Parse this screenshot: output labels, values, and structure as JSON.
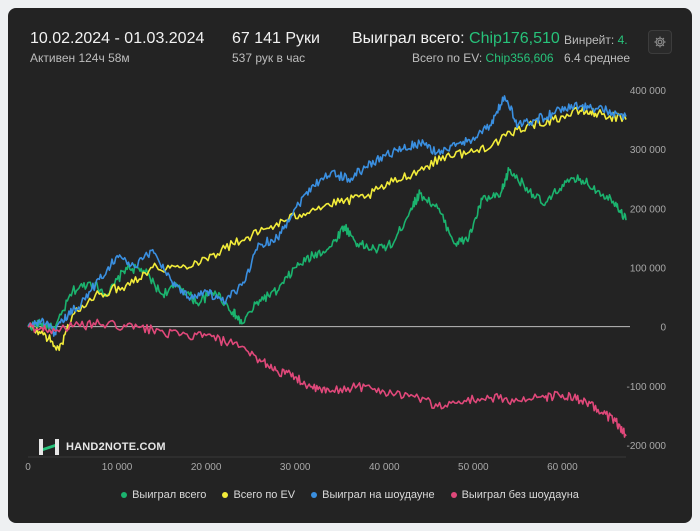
{
  "header": {
    "date_range": "10.02.2024 - 01.03.2024",
    "active": "Активен 124ч 58м",
    "hands": "67 141 Руки",
    "hands_per_hour": "537 рук в час",
    "won_label": "Выиграл всего:",
    "won_value": "Chip176,510",
    "ev_label": "Всего по EV:",
    "ev_value": "Chip356,606",
    "winrate_label": "Винрейт:",
    "winrate_value": "4.",
    "avg_text": "6.4 среднее"
  },
  "logo": {
    "text": "HAND2NOTE.COM"
  },
  "icons": {
    "settings": "gear-icon",
    "logo": "hand2note-logo-icon"
  },
  "colors": {
    "won": "#1bb36e",
    "ev": "#f2ec3a",
    "showdown": "#3a8fe0",
    "non_showdown": "#e0487a"
  },
  "chart_data": {
    "type": "line",
    "title": "",
    "xlabel": "",
    "ylabel": "",
    "xlim": [
      0,
      67141
    ],
    "ylim": [
      -200000,
      400000
    ],
    "x_ticks": [
      0,
      10000,
      20000,
      30000,
      40000,
      50000,
      60000
    ],
    "x_tick_labels": [
      "0",
      "10 000",
      "20 000",
      "30 000",
      "40 000",
      "50 000",
      "60 000"
    ],
    "y_ticks": [
      400000,
      300000,
      200000,
      100000,
      0,
      -100000,
      -200000
    ],
    "y_tick_labels": [
      "400 000",
      "300 000",
      "200 000",
      "100 000",
      "0",
      "-100 000",
      "-200 000"
    ],
    "y_axis_position": "right",
    "grid": false,
    "zero_line": true,
    "legend_position": "bottom",
    "series": [
      {
        "name": "Выиграл всего",
        "color_key": "won",
        "x": [
          0,
          1500,
          3000,
          5000,
          7000,
          9000,
          11000,
          13000,
          15000,
          17000,
          19000,
          21000,
          23000,
          24000,
          26000,
          28000,
          30000,
          32000,
          34000,
          35500,
          37000,
          39000,
          41000,
          43000,
          44000,
          46000,
          48000,
          49500,
          51000,
          53000,
          54000,
          56000,
          58000,
          60000,
          62000,
          64000,
          66000,
          67141
        ],
        "y": [
          0,
          5000,
          -5000,
          60000,
          75000,
          55000,
          100000,
          95000,
          55000,
          70000,
          40000,
          60000,
          25000,
          5000,
          45000,
          60000,
          100000,
          120000,
          135000,
          170000,
          140000,
          130000,
          140000,
          200000,
          225000,
          200000,
          140000,
          150000,
          215000,
          220000,
          265000,
          235000,
          205000,
          240000,
          250000,
          230000,
          210000,
          180000
        ]
      },
      {
        "name": "Всего по EV",
        "color_key": "ev",
        "x": [
          0,
          2000,
          3500,
          5000,
          8000,
          11000,
          14000,
          17000,
          20000,
          23000,
          26000,
          29000,
          32000,
          35000,
          38000,
          41000,
          44000,
          47000,
          50000,
          53000,
          56000,
          59000,
          62000,
          64000,
          67141
        ],
        "y": [
          0,
          -15000,
          -40000,
          20000,
          55000,
          70000,
          100000,
          100000,
          115000,
          140000,
          160000,
          180000,
          200000,
          210000,
          220000,
          245000,
          265000,
          290000,
          295000,
          315000,
          340000,
          350000,
          365000,
          360000,
          350000
        ]
      },
      {
        "name": "Выиграл на шоудауне",
        "color_key": "showdown",
        "x": [
          0,
          1500,
          3000,
          4500,
          6000,
          8000,
          10000,
          12000,
          14000,
          16000,
          18000,
          20000,
          22000,
          24000,
          26000,
          28000,
          30000,
          32000,
          34000,
          36000,
          38000,
          40000,
          42000,
          44000,
          46000,
          48000,
          50000,
          52000,
          53500,
          55000,
          57000,
          59000,
          61000,
          63000,
          65000,
          67141
        ],
        "y": [
          0,
          10000,
          -10000,
          20000,
          40000,
          80000,
          120000,
          100000,
          130000,
          80000,
          50000,
          60000,
          40000,
          70000,
          140000,
          150000,
          200000,
          240000,
          260000,
          250000,
          270000,
          290000,
          300000,
          310000,
          295000,
          305000,
          320000,
          340000,
          390000,
          340000,
          350000,
          360000,
          375000,
          370000,
          365000,
          355000
        ]
      },
      {
        "name": "Выиграл без шоудауна",
        "color_key": "non_showdown",
        "x": [
          0,
          2000,
          5000,
          8000,
          11000,
          14000,
          17000,
          20000,
          23000,
          26000,
          28000,
          30000,
          32000,
          34000,
          37000,
          40000,
          43000,
          46000,
          49000,
          52000,
          55000,
          58000,
          60000,
          62000,
          64000,
          66000,
          67141
        ],
        "y": [
          0,
          -5000,
          0,
          5000,
          0,
          -5000,
          -15000,
          -15000,
          -30000,
          -55000,
          -75000,
          -85000,
          -105000,
          -110000,
          -100000,
          -110000,
          -115000,
          -135000,
          -125000,
          -120000,
          -125000,
          -120000,
          -115000,
          -125000,
          -140000,
          -160000,
          -185000
        ]
      }
    ]
  }
}
